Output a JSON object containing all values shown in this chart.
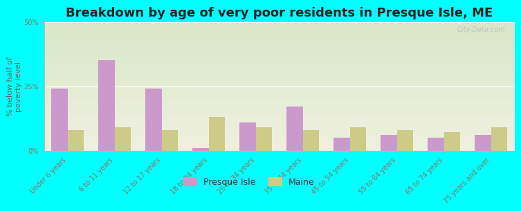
{
  "title": "Breakdown by age of very poor residents in Presque Isle, ME",
  "ylabel": "% below half of\npoverty level",
  "categories": [
    "Under 6 years",
    "6 to 11 years",
    "12 to 17 years",
    "18 to 24 years",
    "25 to 34 years",
    "35 to 44 years",
    "45 to 54 years",
    "55 to 64 years",
    "65 to 74 years",
    "75 years and over"
  ],
  "presque_isle": [
    24,
    35,
    24,
    1,
    11,
    17,
    5,
    6,
    5,
    6
  ],
  "maine": [
    8,
    9,
    8,
    13,
    9,
    8,
    9,
    8,
    7,
    9
  ],
  "presque_isle_color": "#cc99cc",
  "maine_color": "#cccc88",
  "background_top": "#d8e8c8",
  "background_bottom": "#f0f0e0",
  "outer_background": "#00ffff",
  "ylim": [
    0,
    50
  ],
  "yticks": [
    0,
    25,
    50
  ],
  "ytick_labels": [
    "0%",
    "25%",
    "50%"
  ],
  "bar_width": 0.35,
  "title_fontsize": 13,
  "tick_label_fontsize": 7,
  "ylabel_fontsize": 8,
  "tick_color": "#887766",
  "ylabel_color": "#666655",
  "watermark": "City-Data.com",
  "legend_fontsize": 9
}
